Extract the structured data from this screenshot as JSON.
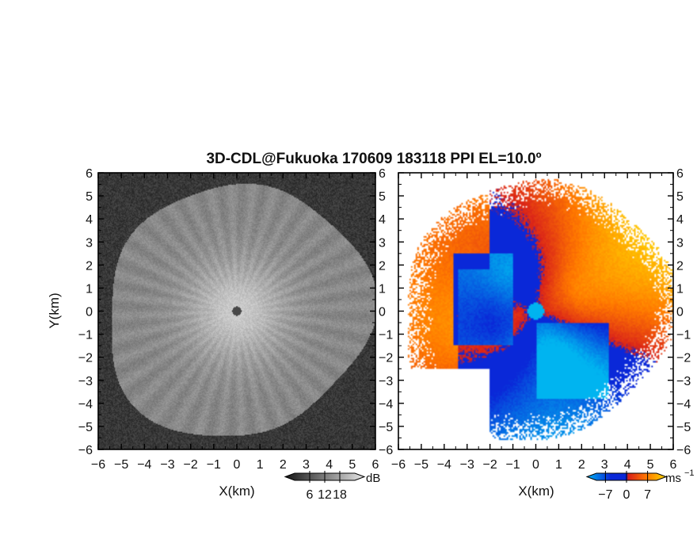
{
  "chart_data": {
    "title": "3D-CDL@Fukuoka 170609 183118 PPI EL=10.0º",
    "type": "heatmap",
    "panels": [
      {
        "name": "intensity",
        "xlabel": "X(km)",
        "ylabel": "Y(km)",
        "xlim": [
          -6,
          6
        ],
        "ylim": [
          -6,
          6
        ],
        "x_ticks": [
          "−6",
          "−5",
          "−4",
          "−3",
          "−2",
          "−1",
          "0",
          "1",
          "2",
          "3",
          "4",
          "5",
          "6"
        ],
        "y_ticks": [
          "6",
          "5",
          "4",
          "3",
          "2",
          "1",
          "0",
          "−1",
          "−2",
          "−3",
          "−4",
          "−5",
          "−6"
        ],
        "colorbar": {
          "unit": "dB",
          "ticks": [
            "6",
            "12",
            "18"
          ],
          "range": [
            0,
            24
          ],
          "colormap": "grayscale"
        }
      },
      {
        "name": "doppler-velocity",
        "xlabel": "X(km)",
        "xlim": [
          -6,
          6
        ],
        "ylim": [
          -6,
          6
        ],
        "x_ticks": [
          "−6",
          "−5",
          "−4",
          "−3",
          "−2",
          "−1",
          "0",
          "1",
          "2",
          "3",
          "4",
          "5",
          "6"
        ],
        "y_ticks": [
          "6",
          "5",
          "4",
          "3",
          "2",
          "1",
          "0",
          "−1",
          "−2",
          "−3",
          "−4",
          "−5",
          "−6"
        ],
        "colorbar": {
          "unit": "ms",
          "unit_exponent": "−1",
          "ticks": [
            "−7",
            "0",
            "7"
          ],
          "range": [
            -10,
            10
          ],
          "colormap": "blue-red-yellow"
        }
      }
    ]
  },
  "colors": {
    "approach_dark": "#0a28d8",
    "approach_light": "#00b4f0",
    "recede_dark": "#d8201a",
    "recede_light": "#ffd800",
    "gray_dark": "#141414",
    "gray_light": "#e6e6e6"
  }
}
